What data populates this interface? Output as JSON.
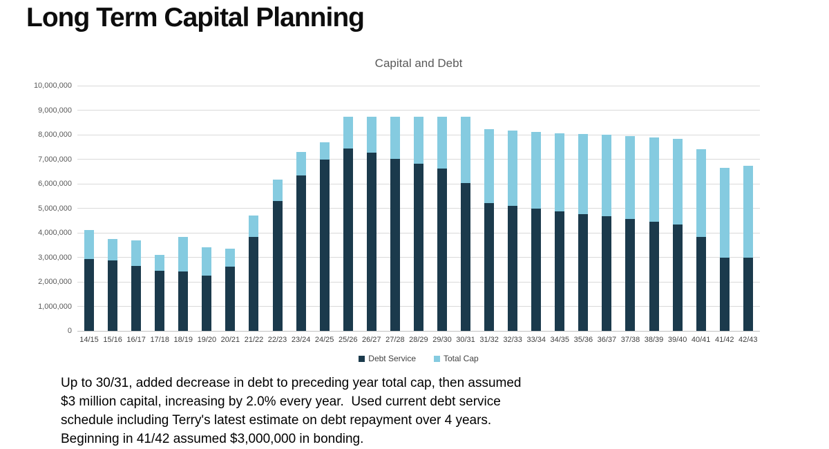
{
  "page": {
    "title": "Long Term Capital Planning",
    "footer_lines": [
      "Up to 30/31, added decrease in debt to preceding year total cap, then assumed",
      "$3 million capital, increasing by 2.0% every year.  Used current debt service",
      "schedule including Terry's latest estimate on debt repayment over 4 years.",
      "Beginning in 41/42 assumed $3,000,000 in bonding."
    ]
  },
  "chart_data": {
    "type": "bar",
    "stacked": true,
    "title": "Capital and Debt",
    "categories": [
      "14/15",
      "15/16",
      "16/17",
      "17/18",
      "18/19",
      "19/20",
      "20/21",
      "21/22",
      "22/23",
      "23/24",
      "24/25",
      "25/26",
      "26/27",
      "27/28",
      "28/29",
      "29/30",
      "30/31",
      "31/32",
      "32/33",
      "33/34",
      "34/35",
      "35/36",
      "36/37",
      "37/38",
      "38/39",
      "39/40",
      "40/41",
      "41/42",
      "42/43"
    ],
    "series": [
      {
        "name": "Debt Service",
        "color": "#1b3a4c",
        "values": [
          2930000,
          2870000,
          2650000,
          2440000,
          2430000,
          2260000,
          2610000,
          3820000,
          5300000,
          6350000,
          7000000,
          7440000,
          7270000,
          7020000,
          6810000,
          6610000,
          6030000,
          5220000,
          5100000,
          4990000,
          4880000,
          4770000,
          4680000,
          4560000,
          4450000,
          4330000,
          3820000,
          3000000,
          3000000
        ]
      },
      {
        "name": "Total Cap",
        "color": "#85cbe0",
        "values": [
          1170000,
          880000,
          1050000,
          650000,
          1400000,
          1160000,
          750000,
          880000,
          870000,
          960000,
          680000,
          1290000,
          1460000,
          1710000,
          1920000,
          2120000,
          2700000,
          3000000,
          3060000,
          3120000,
          3180000,
          3250000,
          3310000,
          3380000,
          3450000,
          3510000,
          3590000,
          3660000,
          3730000
        ]
      }
    ],
    "ylim": [
      0,
      10000000
    ],
    "ytick_step": 1000000,
    "grid": true,
    "legend_position": "bottom",
    "colors": {
      "grid": "#d9d9d9",
      "axis_text": "#595959",
      "title_text": "#595959"
    }
  }
}
